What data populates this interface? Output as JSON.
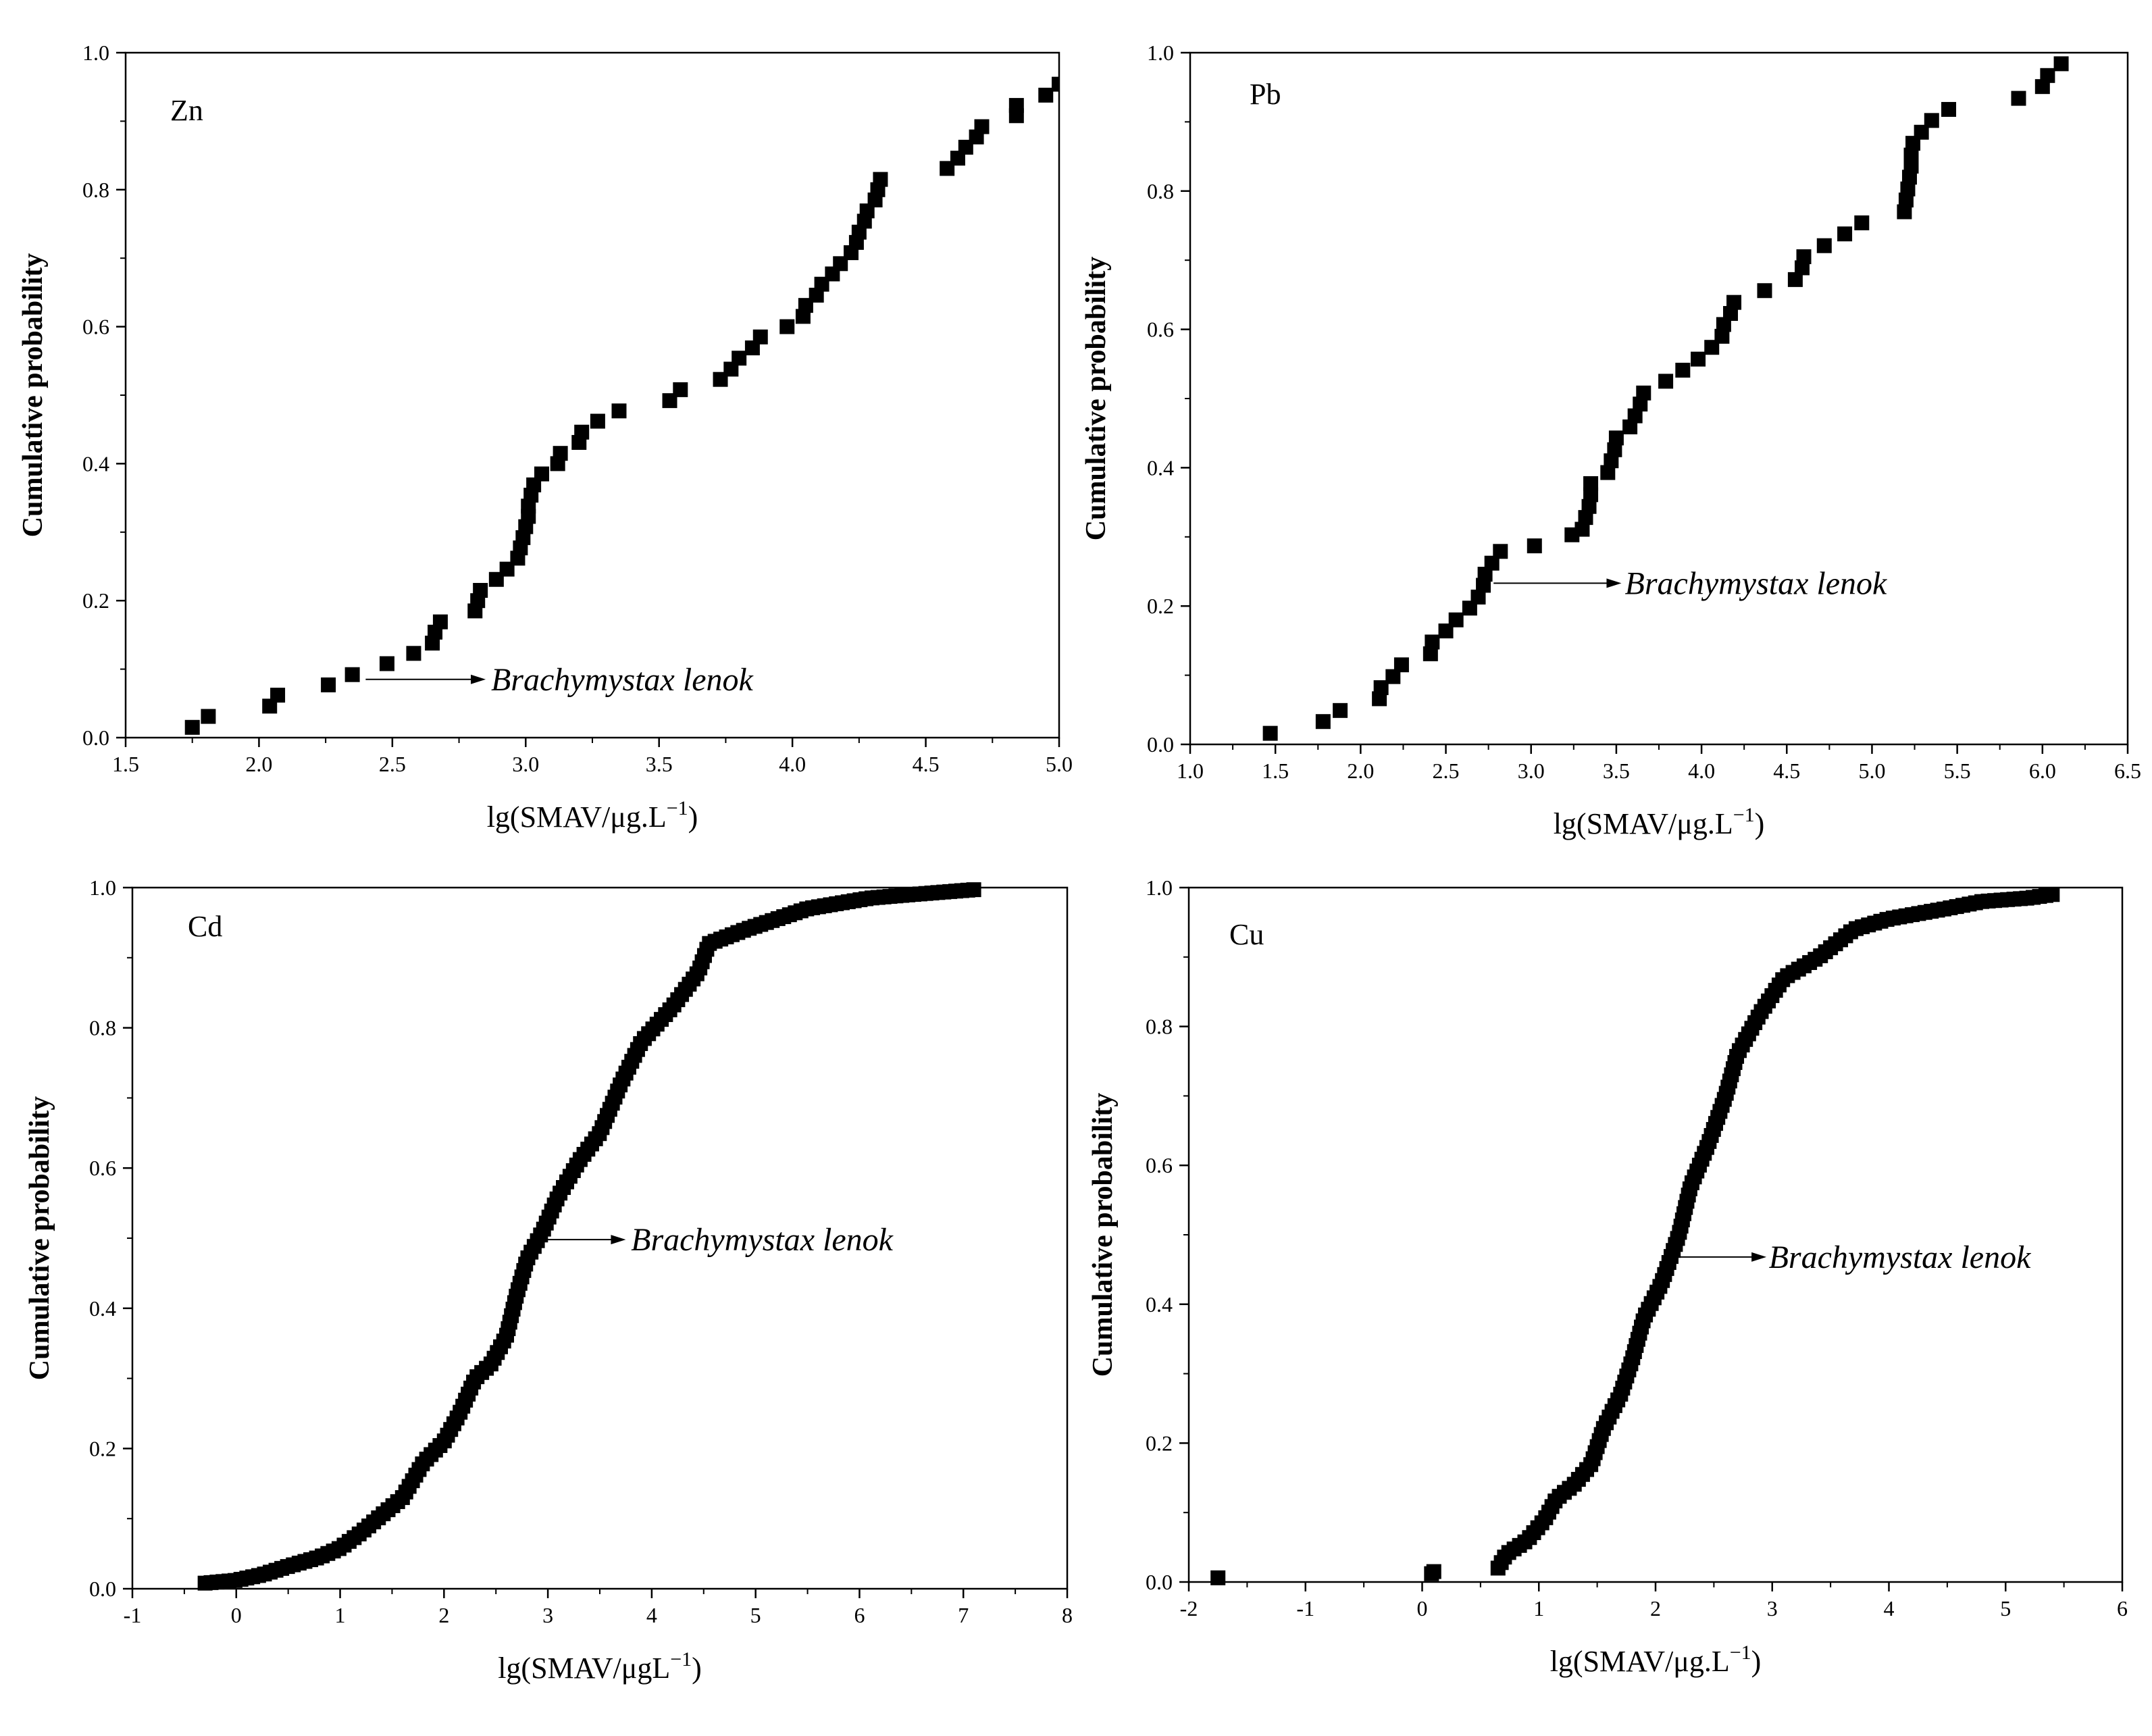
{
  "figure": {
    "background": "#ffffff",
    "marker_color": "#000000"
  },
  "chart_data": [
    {
      "id": "zn",
      "type": "scatter",
      "metal": "Zn",
      "xlabel": "lg(SMAV/μg.L",
      "xlabel_sup": "−1",
      "xlabel_tail": ")",
      "ylabel": "Cumulative probability",
      "xlim": [
        1.5,
        5.0
      ],
      "ylim": [
        0.0,
        1.0
      ],
      "xticks": [
        1.5,
        2.0,
        2.5,
        3.0,
        3.5,
        4.0,
        4.5,
        5.0
      ],
      "xtick_labels": [
        "1.5",
        "2.0",
        "2.5",
        "3.0",
        "3.5",
        "4.0",
        "4.5",
        "5.0"
      ],
      "yticks": [
        0.0,
        0.2,
        0.4,
        0.6,
        0.8,
        1.0
      ],
      "ytick_labels": [
        "0.0",
        "0.2",
        "0.4",
        "0.6",
        "0.8",
        "1.0"
      ],
      "annotation": {
        "text": "Brachymystax lenok",
        "x_from": 2.4,
        "x_to": 2.85,
        "y": 0.085,
        "text_x": 2.87
      },
      "series": [
        {
          "name": "Zn",
          "points": [
            [
              1.75,
              0.015
            ],
            [
              1.81,
              0.031
            ],
            [
              2.04,
              0.046
            ],
            [
              2.07,
              0.062
            ],
            [
              2.26,
              0.077
            ],
            [
              2.35,
              0.092
            ],
            [
              2.48,
              0.108
            ],
            [
              2.58,
              0.123
            ],
            [
              2.65,
              0.138
            ],
            [
              2.66,
              0.154
            ],
            [
              2.68,
              0.169
            ],
            [
              2.81,
              0.185
            ],
            [
              2.82,
              0.2
            ],
            [
              2.83,
              0.215
            ],
            [
              2.89,
              0.231
            ],
            [
              2.93,
              0.246
            ],
            [
              2.97,
              0.262
            ],
            [
              2.98,
              0.277
            ],
            [
              2.99,
              0.292
            ],
            [
              3.0,
              0.308
            ],
            [
              3.01,
              0.323
            ],
            [
              3.01,
              0.338
            ],
            [
              3.02,
              0.354
            ],
            [
              3.03,
              0.369
            ],
            [
              3.06,
              0.385
            ],
            [
              3.12,
              0.4
            ],
            [
              3.13,
              0.415
            ],
            [
              3.2,
              0.431
            ],
            [
              3.21,
              0.446
            ],
            [
              3.27,
              0.462
            ],
            [
              3.35,
              0.477
            ],
            [
              3.54,
              0.492
            ],
            [
              3.58,
              0.508
            ],
            [
              3.73,
              0.523
            ],
            [
              3.77,
              0.538
            ],
            [
              3.8,
              0.554
            ],
            [
              3.85,
              0.569
            ],
            [
              3.88,
              0.585
            ],
            [
              3.98,
              0.6
            ],
            [
              4.04,
              0.615
            ],
            [
              4.05,
              0.631
            ],
            [
              4.09,
              0.646
            ],
            [
              4.11,
              0.662
            ],
            [
              4.15,
              0.677
            ],
            [
              4.18,
              0.692
            ],
            [
              4.22,
              0.708
            ],
            [
              4.24,
              0.723
            ],
            [
              4.25,
              0.738
            ],
            [
              4.27,
              0.754
            ],
            [
              4.28,
              0.769
            ],
            [
              4.31,
              0.785
            ],
            [
              4.32,
              0.8
            ],
            [
              4.33,
              0.815
            ],
            [
              4.58,
              0.831
            ],
            [
              4.62,
              0.846
            ],
            [
              4.65,
              0.862
            ],
            [
              4.69,
              0.877
            ],
            [
              4.71,
              0.892
            ],
            [
              4.84,
              0.908
            ],
            [
              4.84,
              0.923
            ],
            [
              4.95,
              0.938
            ],
            [
              5.0,
              0.954
            ]
          ]
        }
      ]
    },
    {
      "id": "pb",
      "type": "scatter",
      "metal": "Pb",
      "xlabel": "lg(SMAV/μg.L",
      "xlabel_sup": "−1",
      "xlabel_tail": ")",
      "ylabel": "Cumulative probability",
      "xlim": [
        1.0,
        6.5
      ],
      "ylim": [
        0.0,
        1.0
      ],
      "xticks": [
        1.0,
        1.5,
        2.0,
        2.5,
        3.0,
        3.5,
        4.0,
        4.5,
        5.0,
        5.5,
        6.0,
        6.5
      ],
      "xtick_labels": [
        "1.0",
        "1.5",
        "2.0",
        "2.5",
        "3.0",
        "3.5",
        "4.0",
        "4.5",
        "5.0",
        "5.5",
        "6.0",
        "6.5"
      ],
      "yticks": [
        0.0,
        0.2,
        0.4,
        0.6,
        0.8,
        1.0
      ],
      "ytick_labels": [
        "0.0",
        "0.2",
        "0.4",
        "0.6",
        "0.8",
        "1.0"
      ],
      "annotation": {
        "text": "Brachymystax lenok",
        "x_from": 2.78,
        "x_to": 3.53,
        "y": 0.233,
        "text_x": 3.55
      },
      "series": [
        {
          "name": "Pb",
          "points": [
            [
              1.47,
              0.016
            ],
            [
              1.78,
              0.033
            ],
            [
              1.88,
              0.049
            ],
            [
              2.11,
              0.066
            ],
            [
              2.12,
              0.082
            ],
            [
              2.19,
              0.098
            ],
            [
              2.24,
              0.115
            ],
            [
              2.41,
              0.131
            ],
            [
              2.42,
              0.148
            ],
            [
              2.5,
              0.164
            ],
            [
              2.56,
              0.18
            ],
            [
              2.64,
              0.197
            ],
            [
              2.69,
              0.213
            ],
            [
              2.72,
              0.23
            ],
            [
              2.73,
              0.246
            ],
            [
              2.77,
              0.262
            ],
            [
              2.82,
              0.279
            ],
            [
              3.02,
              0.287
            ],
            [
              3.24,
              0.303
            ],
            [
              3.3,
              0.311
            ],
            [
              3.32,
              0.328
            ],
            [
              3.34,
              0.344
            ],
            [
              3.35,
              0.361
            ],
            [
              3.35,
              0.377
            ],
            [
              3.45,
              0.393
            ],
            [
              3.47,
              0.41
            ],
            [
              3.49,
              0.426
            ],
            [
              3.5,
              0.443
            ],
            [
              3.58,
              0.459
            ],
            [
              3.61,
              0.475
            ],
            [
              3.64,
              0.492
            ],
            [
              3.66,
              0.508
            ],
            [
              3.79,
              0.525
            ],
            [
              3.89,
              0.541
            ],
            [
              3.98,
              0.557
            ],
            [
              4.06,
              0.574
            ],
            [
              4.12,
              0.59
            ],
            [
              4.13,
              0.607
            ],
            [
              4.17,
              0.623
            ],
            [
              4.19,
              0.639
            ],
            [
              4.37,
              0.656
            ],
            [
              4.55,
              0.672
            ],
            [
              4.59,
              0.689
            ],
            [
              4.6,
              0.705
            ],
            [
              4.72,
              0.721
            ],
            [
              4.84,
              0.738
            ],
            [
              4.94,
              0.754
            ],
            [
              5.19,
              0.77
            ],
            [
              5.2,
              0.787
            ],
            [
              5.21,
              0.803
            ],
            [
              5.22,
              0.82
            ],
            [
              5.23,
              0.836
            ],
            [
              5.23,
              0.852
            ],
            [
              5.24,
              0.869
            ],
            [
              5.29,
              0.885
            ],
            [
              5.35,
              0.902
            ],
            [
              5.45,
              0.918
            ],
            [
              5.86,
              0.934
            ],
            [
              6.0,
              0.951
            ],
            [
              6.03,
              0.967
            ],
            [
              6.11,
              0.984
            ]
          ]
        }
      ]
    },
    {
      "id": "cd",
      "type": "scatter",
      "metal": "Cd",
      "xlabel": "lg(SMAV/μgL",
      "xlabel_sup": "−1",
      "xlabel_tail": ")",
      "ylabel": "Cumulative probability",
      "xlim": [
        -1,
        8
      ],
      "ylim": [
        0.0,
        1.0
      ],
      "xticks": [
        -1,
        0,
        1,
        2,
        3,
        4,
        5,
        6,
        7,
        8
      ],
      "xtick_labels": [
        "-1",
        "0",
        "1",
        "2",
        "3",
        "4",
        "5",
        "6",
        "7",
        "8"
      ],
      "yticks": [
        0.0,
        0.2,
        0.4,
        0.6,
        0.8,
        1.0
      ],
      "ytick_labels": [
        "0.0",
        "0.2",
        "0.4",
        "0.6",
        "0.8",
        "1.0"
      ],
      "annotation": {
        "text": "Brachymystax lenok",
        "x_from": 2.9,
        "x_to": 3.75,
        "y": 0.498,
        "text_x": 3.8
      },
      "series": [
        {
          "name": "Cd",
          "curve": [
            [
              -0.3,
              0.008
            ],
            [
              0.0,
              0.012
            ],
            [
              0.25,
              0.02
            ],
            [
              0.5,
              0.032
            ],
            [
              0.8,
              0.045
            ],
            [
              1.0,
              0.058
            ],
            [
              1.2,
              0.08
            ],
            [
              1.4,
              0.105
            ],
            [
              1.6,
              0.13
            ],
            [
              1.8,
              0.18
            ],
            [
              2.0,
              0.21
            ],
            [
              2.15,
              0.25
            ],
            [
              2.3,
              0.3
            ],
            [
              2.45,
              0.32
            ],
            [
              2.6,
              0.36
            ],
            [
              2.7,
              0.42
            ],
            [
              2.8,
              0.47
            ],
            [
              2.95,
              0.51
            ],
            [
              3.1,
              0.56
            ],
            [
              3.3,
              0.61
            ],
            [
              3.5,
              0.65
            ],
            [
              3.7,
              0.72
            ],
            [
              3.9,
              0.78
            ],
            [
              4.2,
              0.83
            ],
            [
              4.45,
              0.88
            ],
            [
              4.55,
              0.92
            ],
            [
              4.9,
              0.94
            ],
            [
              5.3,
              0.96
            ],
            [
              5.5,
              0.97
            ],
            [
              6.1,
              0.985
            ],
            [
              6.5,
              0.99
            ],
            [
              7.1,
              0.997
            ]
          ],
          "n": 180
        }
      ]
    },
    {
      "id": "cu",
      "type": "scatter",
      "metal": "Cu",
      "xlabel": "lg(SMAV/μg.L",
      "xlabel_sup": "−1",
      "xlabel_tail": ")",
      "ylabel": "Cumulative probability",
      "xlim": [
        -2,
        6
      ],
      "ylim": [
        0.0,
        1.0
      ],
      "xticks": [
        -2,
        -1,
        0,
        1,
        2,
        3,
        4,
        5,
        6
      ],
      "xtick_labels": [
        "-2",
        "-1",
        "0",
        "1",
        "2",
        "3",
        "4",
        "5",
        "6"
      ],
      "yticks": [
        0.0,
        0.2,
        0.4,
        0.6,
        0.8,
        1.0
      ],
      "ytick_labels": [
        "0.0",
        "0.2",
        "0.4",
        "0.6",
        "0.8",
        "1.0"
      ],
      "annotation": {
        "text": "Brachymystax lenok",
        "x_from": 2.2,
        "x_to": 2.95,
        "y": 0.468,
        "text_x": 2.97
      },
      "series": [
        {
          "name": "Cu",
          "curve": [
            [
              0.65,
              0.02
            ],
            [
              0.72,
              0.04
            ],
            [
              0.9,
              0.06
            ],
            [
              1.05,
              0.09
            ],
            [
              1.15,
              0.12
            ],
            [
              1.3,
              0.14
            ],
            [
              1.45,
              0.17
            ],
            [
              1.55,
              0.22
            ],
            [
              1.7,
              0.27
            ],
            [
              1.8,
              0.32
            ],
            [
              1.9,
              0.38
            ],
            [
              2.05,
              0.43
            ],
            [
              2.2,
              0.5
            ],
            [
              2.3,
              0.57
            ],
            [
              2.45,
              0.63
            ],
            [
              2.6,
              0.7
            ],
            [
              2.7,
              0.76
            ],
            [
              2.9,
              0.82
            ],
            [
              3.1,
              0.87
            ],
            [
              3.4,
              0.9
            ],
            [
              3.7,
              0.94
            ],
            [
              4.0,
              0.955
            ],
            [
              4.5,
              0.97
            ],
            [
              4.8,
              0.98
            ],
            [
              5.2,
              0.985
            ],
            [
              5.4,
              0.99
            ]
          ],
          "n": 150,
          "outliers": [
            [
              -1.75,
              0.006
            ],
            [
              0.08,
              0.012
            ],
            [
              0.1,
              0.015
            ]
          ]
        }
      ]
    }
  ]
}
